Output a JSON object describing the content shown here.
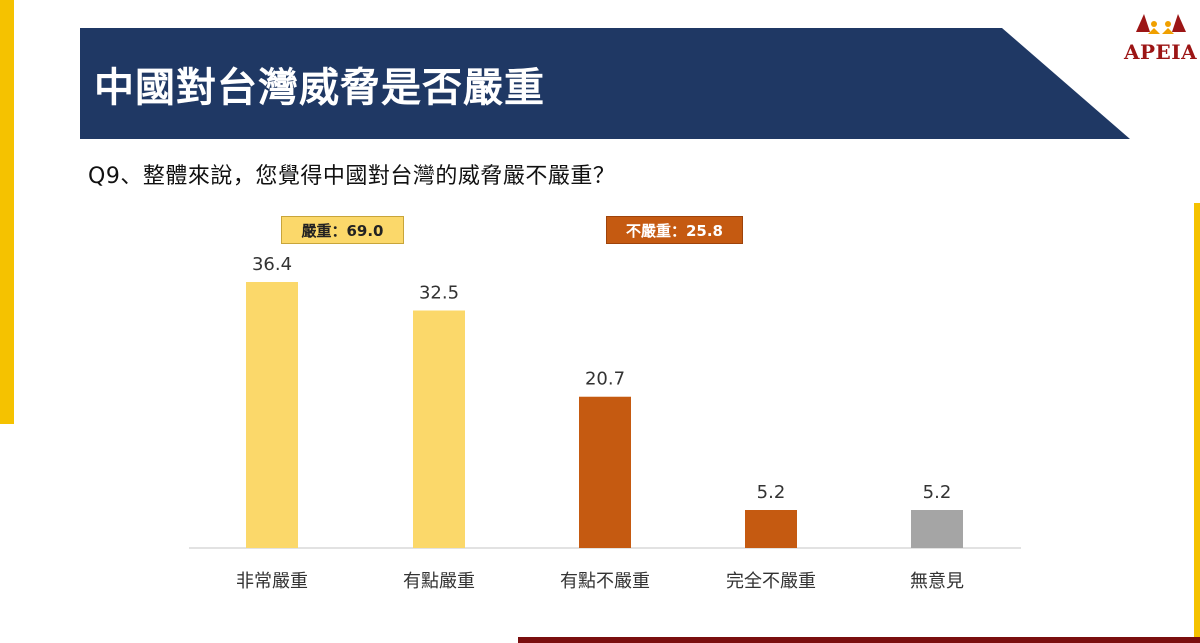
{
  "title": "中國對台灣威脅是否嚴重",
  "logo_text": "APEIA",
  "question": "Q9、整體來說，您覺得中國對台灣的威脅嚴不嚴重？",
  "groups": {
    "serious_label": "嚴重：69.0",
    "not_serious_label": "不嚴重：25.8"
  },
  "colors": {
    "banner": "#1f3864",
    "serious": "#fbd86a",
    "not_serious": "#c55a11",
    "no_opinion": "#a5a5a5",
    "accent": "#f5c200"
  },
  "chart_data": {
    "type": "bar",
    "categories": [
      "非常嚴重",
      "有點嚴重",
      "有點不嚴重",
      "完全不嚴重",
      "無意見"
    ],
    "values": [
      36.4,
      32.5,
      20.7,
      5.2,
      5.2
    ],
    "value_labels": [
      "36.4",
      "32.5",
      "20.7",
      "5.2",
      "5.2"
    ],
    "bar_colors": [
      "#fbd86a",
      "#fbd86a",
      "#c55a11",
      "#c55a11",
      "#a5a5a5"
    ],
    "ylim": [
      0,
      40
    ],
    "grid": false,
    "xlabel": "",
    "ylabel": ""
  }
}
